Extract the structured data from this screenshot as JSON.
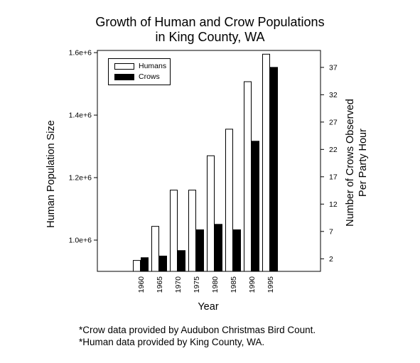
{
  "title_line1": "Growth of Human and Crow Populations",
  "title_line2": "in King County, WA",
  "footnote1": "*Crow data provided by Audubon Christmas Bird Count.",
  "footnote2": "*Human data provided by King County, WA.",
  "chart_data": {
    "type": "bar",
    "categories": [
      "1960",
      "1965",
      "1970",
      "1975",
      "1980",
      "1985",
      "1990",
      "1995"
    ],
    "xlabel": "Year",
    "ylabel_left": "Human Population Size",
    "ylabel_right_line1": "Number of Crows Observed",
    "ylabel_right_line2": "Per Party Hour",
    "left_axis": {
      "ylim": [
        900000,
        1607000
      ],
      "ticks": [
        1000000,
        1200000,
        1400000,
        1600000
      ],
      "tick_labels": [
        "1.0e+6",
        "1.2e+6",
        "1.4e+6",
        "1.6e+6"
      ]
    },
    "right_axis": {
      "ylim": [
        -0.3,
        40.1
      ],
      "ticks": [
        2,
        7,
        12,
        17,
        22,
        27,
        32,
        37
      ],
      "tick_labels": [
        "2",
        "7",
        "12",
        "17",
        "22",
        "27",
        "32",
        "37"
      ]
    },
    "series": [
      {
        "name": "Humans",
        "axis": "left",
        "color": "#ffffff",
        "values": [
          935000,
          1044000,
          1160000,
          1160000,
          1270000,
          1355000,
          1507000,
          1595000
        ]
      },
      {
        "name": "Crows",
        "axis": "right",
        "color": "#000000",
        "values": [
          2.2,
          2.5,
          3.5,
          7.3,
          8.3,
          7.3,
          23.5,
          37.0
        ]
      }
    ],
    "legend_position": "top-left",
    "grid": false
  }
}
